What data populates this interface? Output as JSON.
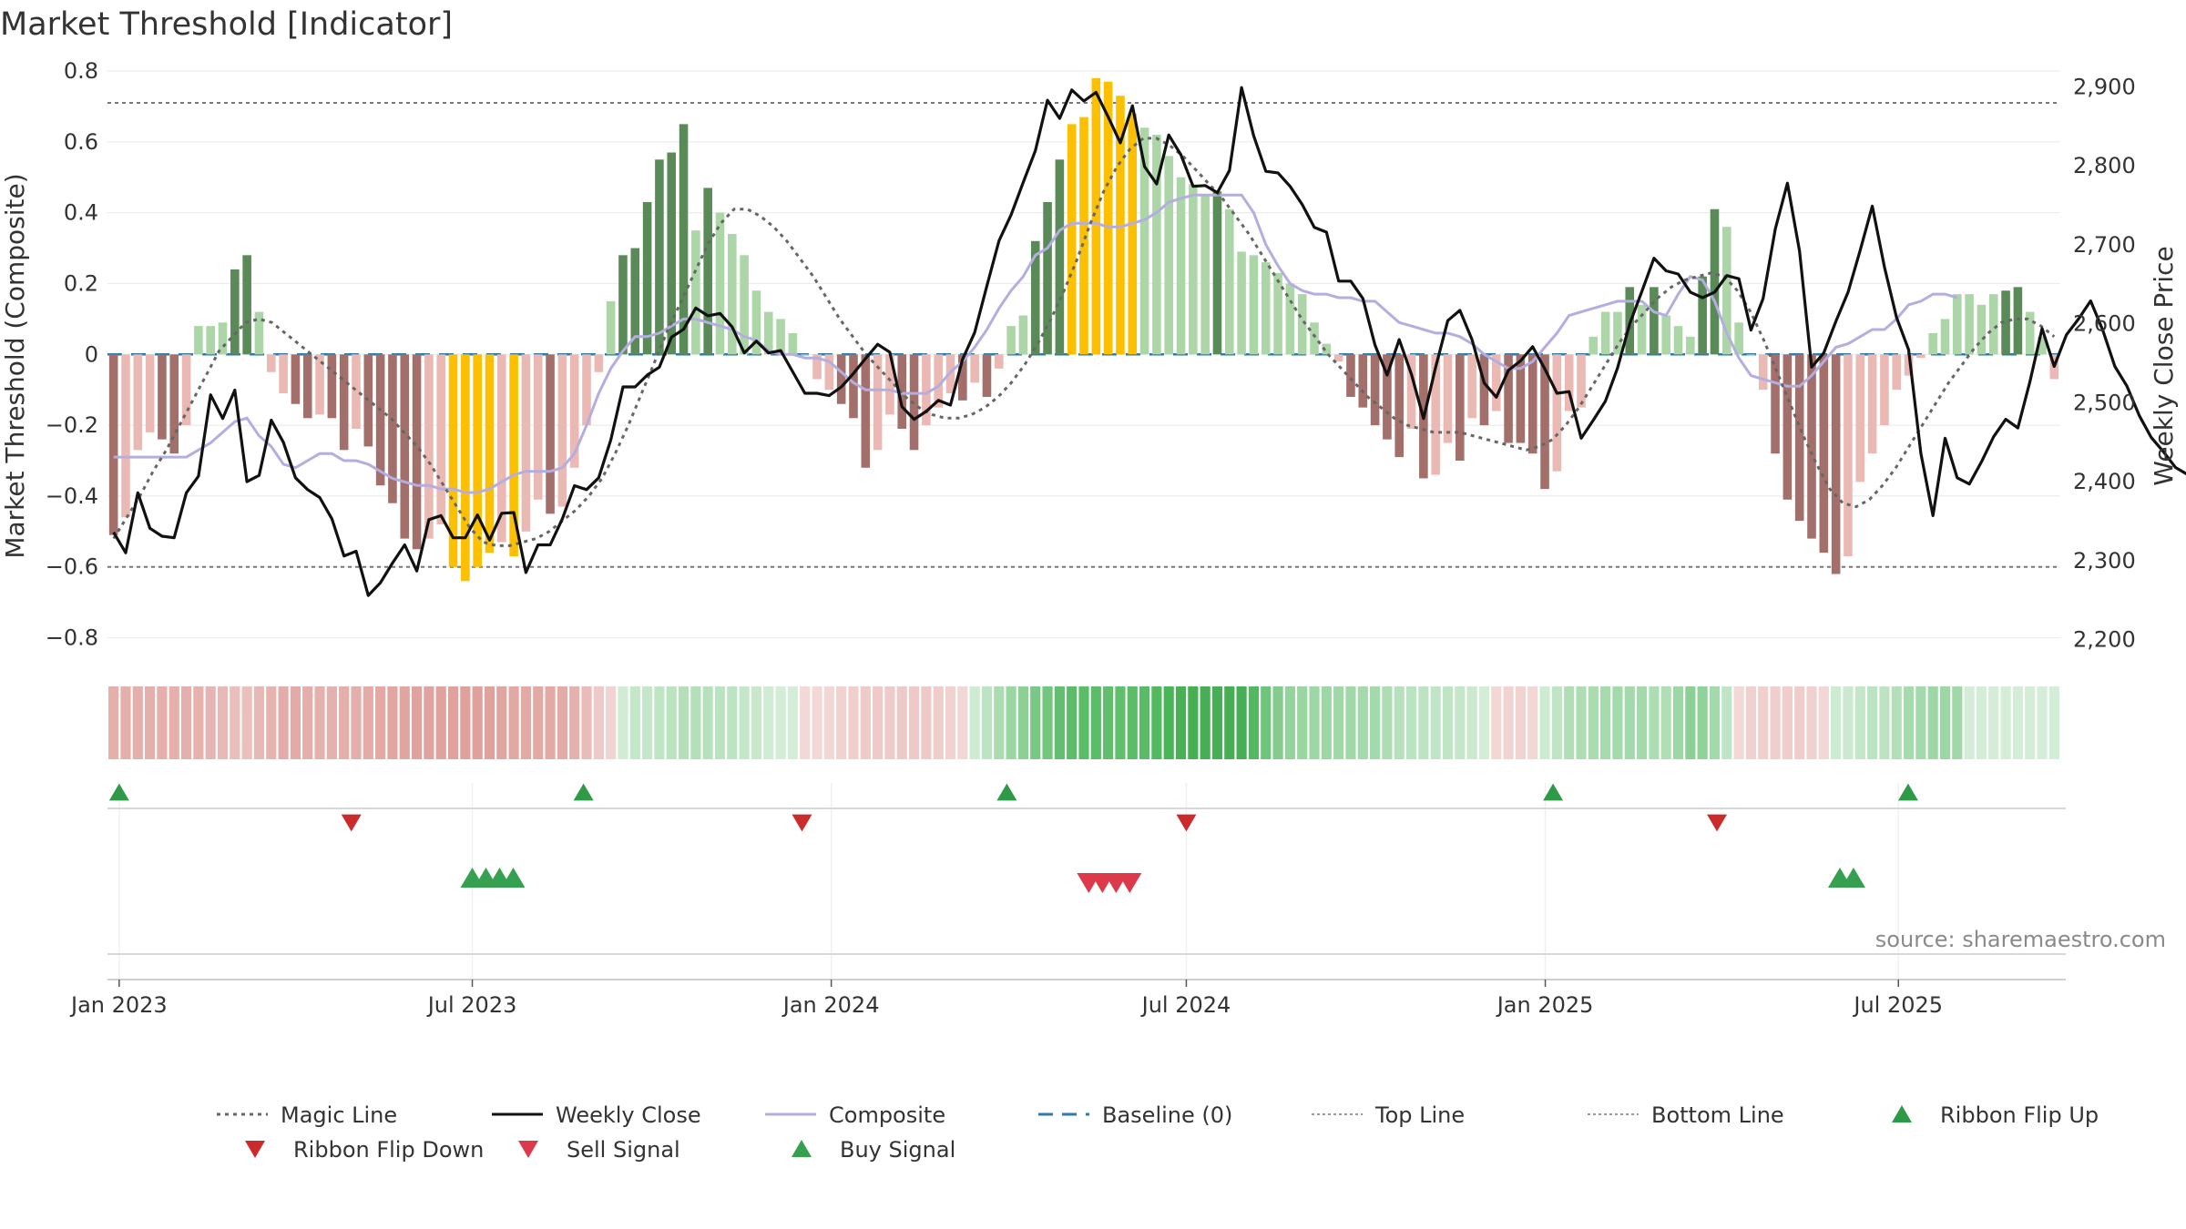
{
  "title": "Market Threshold [Indicator]",
  "source": "source: sharemaestro.com",
  "chart_data": {
    "type": "bar",
    "ylabel_left": "Market Threshold (Composite)",
    "ylabel_right": "Weekly Close Price",
    "ylim_left": [
      -0.85,
      0.8
    ],
    "ylim_right": [
      2180,
      2920
    ],
    "yticks_left": [
      {
        "v": 0.8,
        "t": "0.8"
      },
      {
        "v": 0.6,
        "t": "0.6"
      },
      {
        "v": 0.4,
        "t": "0.4"
      },
      {
        "v": 0.2,
        "t": "0.2"
      },
      {
        "v": 0,
        "t": "0"
      },
      {
        "v": -0.2,
        "t": "−0.2"
      },
      {
        "v": -0.4,
        "t": "−0.4"
      },
      {
        "v": -0.6,
        "t": "−0.6"
      },
      {
        "v": -0.8,
        "t": "−0.8"
      }
    ],
    "yticks_right": [
      {
        "v": 2900,
        "t": "2,900"
      },
      {
        "v": 2800,
        "t": "2,800"
      },
      {
        "v": 2700,
        "t": "2,700"
      },
      {
        "v": 2600,
        "t": "2,600"
      },
      {
        "v": 2500,
        "t": "2,500"
      },
      {
        "v": 2400,
        "t": "2,400"
      },
      {
        "v": 2300,
        "t": "2,300"
      },
      {
        "v": 2200,
        "t": "2,200"
      }
    ],
    "x_start": "2022-12-26",
    "x_end": "2025-09-22",
    "xticks": [
      {
        "d": "2023-01-01",
        "t": "Jan 2023"
      },
      {
        "d": "2023-07-01",
        "t": "Jul 2023"
      },
      {
        "d": "2024-01-01",
        "t": "Jan 2024"
      },
      {
        "d": "2024-07-01",
        "t": "Jul 2024"
      },
      {
        "d": "2025-01-01",
        "t": "Jan 2025"
      },
      {
        "d": "2025-07-01",
        "t": "Jul 2025"
      }
    ],
    "top_line": 0.71,
    "bottom_line": -0.6,
    "baseline": 0,
    "composite_bars": [
      -0.51,
      -0.46,
      -0.27,
      -0.22,
      -0.24,
      -0.28,
      -0.2,
      0.08,
      0.08,
      0.09,
      0.24,
      0.28,
      0.12,
      -0.05,
      -0.11,
      -0.14,
      -0.18,
      -0.17,
      -0.18,
      -0.27,
      -0.21,
      -0.26,
      -0.37,
      -0.42,
      -0.52,
      -0.55,
      -0.52,
      -0.48,
      -0.6,
      -0.64,
      -0.6,
      -0.56,
      -0.53,
      -0.57,
      -0.5,
      -0.41,
      -0.45,
      -0.43,
      -0.32,
      -0.2,
      -0.05,
      0.15,
      0.28,
      0.3,
      0.43,
      0.55,
      0.57,
      0.65,
      0.35,
      0.47,
      0.4,
      0.34,
      0.28,
      0.18,
      0.12,
      0.1,
      0.06,
      0.0,
      -0.07,
      -0.1,
      -0.14,
      -0.18,
      -0.32,
      -0.27,
      -0.17,
      -0.21,
      -0.27,
      -0.2,
      -0.15,
      -0.11,
      -0.13,
      -0.08,
      -0.12,
      -0.04,
      0.08,
      0.11,
      0.32,
      0.43,
      0.55,
      0.65,
      0.67,
      0.78,
      0.77,
      0.73,
      0.68,
      0.64,
      0.62,
      0.56,
      0.5,
      0.48,
      0.45,
      0.46,
      0.41,
      0.29,
      0.28,
      0.26,
      0.23,
      0.2,
      0.17,
      0.09,
      0.03,
      -0.02,
      -0.12,
      -0.15,
      -0.2,
      -0.24,
      -0.29,
      -0.21,
      -0.35,
      -0.34,
      -0.25,
      -0.3,
      -0.18,
      -0.2,
      -0.16,
      -0.25,
      -0.25,
      -0.28,
      -0.38,
      -0.33,
      -0.16,
      -0.15,
      0.05,
      0.12,
      0.12,
      0.19,
      0.14,
      0.19,
      0.11,
      0.08,
      0.05,
      0.22,
      0.41,
      0.36,
      0.09,
      0.0,
      -0.1,
      -0.28,
      -0.41,
      -0.47,
      -0.52,
      -0.56,
      -0.62,
      -0.57,
      -0.36,
      -0.28,
      -0.2,
      -0.1,
      -0.06,
      -0.01,
      0.06,
      0.1,
      0.17,
      0.17,
      0.14,
      0.17,
      0.18,
      0.19,
      0.12,
      0.05,
      -0.07
    ],
    "weekly_close": [
      2336,
      2310,
      2386,
      2341,
      2331,
      2329,
      2386,
      2407,
      2510,
      2480,
      2516,
      2400,
      2408,
      2478,
      2450,
      2405,
      2390,
      2380,
      2353,
      2306,
      2312,
      2256,
      2272,
      2297,
      2320,
      2287,
      2352,
      2357,
      2329,
      2329,
      2358,
      2326,
      2360,
      2361,
      2285,
      2320,
      2320,
      2353,
      2395,
      2390,
      2405,
      2453,
      2520,
      2520,
      2535,
      2545,
      2583,
      2593,
      2620,
      2610,
      2613,
      2596,
      2563,
      2578,
      2563,
      2566,
      2539,
      2512,
      2512,
      2509,
      2520,
      2537,
      2556,
      2574,
      2564,
      2495,
      2479,
      2489,
      2503,
      2497,
      2555,
      2589,
      2648,
      2705,
      2738,
      2779,
      2819,
      2883,
      2860,
      2896,
      2882,
      2893,
      2862,
      2829,
      2876,
      2799,
      2777,
      2839,
      2814,
      2774,
      2775,
      2766,
      2794,
      2899,
      2838,
      2793,
      2791,
      2774,
      2751,
      2722,
      2716,
      2654,
      2654,
      2632,
      2573,
      2535,
      2580,
      2536,
      2480,
      2545,
      2604,
      2617,
      2580,
      2525,
      2507,
      2541,
      2553,
      2571,
      2543,
      2512,
      2514,
      2455,
      2478,
      2502,
      2544,
      2600,
      2641,
      2683,
      2667,
      2663,
      2640,
      2633,
      2640,
      2661,
      2657,
      2592,
      2632,
      2720,
      2778,
      2692,
      2545,
      2563,
      2603,
      2640,
      2693,
      2749,
      2672,
      2608,
      2567,
      2436,
      2357,
      2455,
      2405,
      2397,
      2425,
      2457,
      2479,
      2468,
      2527,
      2594,
      2546,
      2586,
      2606,
      2629,
      2592,
      2546,
      2521,
      2484,
      2456,
      2438,
      2418,
      2409,
      2389,
      2360,
      2358,
      2411
    ],
    "magic_line": [
      -0.52,
      -0.46,
      -0.4,
      -0.33,
      -0.27,
      -0.2,
      -0.13,
      -0.06,
      0.01,
      0.05,
      0.09,
      0.1,
      0.09,
      0.06,
      0.03,
      0.0,
      -0.03,
      -0.06,
      -0.09,
      -0.12,
      -0.15,
      -0.18,
      -0.22,
      -0.26,
      -0.31,
      -0.37,
      -0.43,
      -0.49,
      -0.53,
      -0.54,
      -0.54,
      -0.53,
      -0.52,
      -0.5,
      -0.47,
      -0.44,
      -0.4,
      -0.35,
      -0.28,
      -0.2,
      -0.11,
      -0.02,
      0.07,
      0.15,
      0.23,
      0.31,
      0.37,
      0.41,
      0.41,
      0.39,
      0.36,
      0.32,
      0.27,
      0.22,
      0.16,
      0.1,
      0.05,
      0.0,
      -0.04,
      -0.08,
      -0.12,
      -0.15,
      -0.17,
      -0.18,
      -0.18,
      -0.17,
      -0.15,
      -0.12,
      -0.08,
      -0.03,
      0.03,
      0.1,
      0.18,
      0.27,
      0.37,
      0.46,
      0.53,
      0.58,
      0.61,
      0.61,
      0.59,
      0.56,
      0.52,
      0.48,
      0.44,
      0.39,
      0.34,
      0.28,
      0.22,
      0.16,
      0.1,
      0.05,
      0.0,
      -0.04,
      -0.08,
      -0.12,
      -0.15,
      -0.18,
      -0.2,
      -0.21,
      -0.22,
      -0.22,
      -0.22,
      -0.23,
      -0.24,
      -0.25,
      -0.26,
      -0.27,
      -0.26,
      -0.24,
      -0.2,
      -0.15,
      -0.09,
      -0.03,
      0.03,
      0.08,
      0.12,
      0.16,
      0.19,
      0.21,
      0.22,
      0.23,
      0.22,
      0.18,
      0.12,
      0.04,
      -0.05,
      -0.14,
      -0.23,
      -0.31,
      -0.38,
      -0.42,
      -0.43,
      -0.41,
      -0.37,
      -0.32,
      -0.26,
      -0.2,
      -0.14,
      -0.08,
      -0.03,
      0.02,
      0.06,
      0.09,
      0.1,
      0.1,
      0.08,
      0.05
    ],
    "composite_line": [
      -0.29,
      -0.29,
      -0.29,
      -0.29,
      -0.29,
      -0.29,
      -0.29,
      -0.27,
      -0.25,
      -0.22,
      -0.19,
      -0.18,
      -0.23,
      -0.26,
      -0.31,
      -0.32,
      -0.3,
      -0.28,
      -0.28,
      -0.3,
      -0.3,
      -0.31,
      -0.33,
      -0.35,
      -0.36,
      -0.37,
      -0.37,
      -0.38,
      -0.38,
      -0.39,
      -0.39,
      -0.38,
      -0.36,
      -0.34,
      -0.33,
      -0.33,
      -0.33,
      -0.32,
      -0.28,
      -0.2,
      -0.11,
      -0.04,
      0.01,
      0.05,
      0.05,
      0.06,
      0.08,
      0.1,
      0.1,
      0.09,
      0.08,
      0.07,
      0.05,
      0.04,
      0.01,
      0.0,
      0.0,
      -0.01,
      -0.01,
      -0.02,
      -0.05,
      -0.08,
      -0.1,
      -0.1,
      -0.1,
      -0.11,
      -0.11,
      -0.11,
      -0.09,
      -0.05,
      -0.02,
      0.02,
      0.07,
      0.13,
      0.18,
      0.22,
      0.28,
      0.3,
      0.35,
      0.37,
      0.37,
      0.37,
      0.36,
      0.36,
      0.37,
      0.38,
      0.4,
      0.43,
      0.44,
      0.45,
      0.45,
      0.45,
      0.45,
      0.45,
      0.4,
      0.31,
      0.25,
      0.2,
      0.18,
      0.17,
      0.17,
      0.16,
      0.16,
      0.15,
      0.15,
      0.12,
      0.09,
      0.08,
      0.07,
      0.06,
      0.06,
      0.05,
      0.03,
      0.0,
      -0.02,
      -0.04,
      -0.04,
      -0.02,
      0.02,
      0.06,
      0.11,
      0.12,
      0.13,
      0.14,
      0.15,
      0.15,
      0.15,
      0.12,
      0.11,
      0.17,
      0.22,
      0.21,
      0.15,
      0.06,
      -0.01,
      -0.06,
      -0.07,
      -0.08,
      -0.09,
      -0.09,
      -0.06,
      -0.02,
      0.02,
      0.03,
      0.05,
      0.07,
      0.07,
      0.1,
      0.14,
      0.15,
      0.17,
      0.17,
      0.16
    ],
    "ribbon_flip_up": [
      "2023-01-01",
      "2023-08-27",
      "2024-03-31",
      "2025-01-05",
      "2025-07-06"
    ],
    "ribbon_flip_down": [
      "2023-04-30",
      "2023-12-17",
      "2024-07-01",
      "2025-03-30"
    ],
    "buy_signal": [
      "2023-07-01",
      "2023-07-08",
      "2023-07-15",
      "2023-07-22",
      "2025-06-01",
      "2025-06-08"
    ],
    "sell_signal": [
      "2024-05-12",
      "2024-05-19",
      "2024-05-26",
      "2024-06-02"
    ],
    "legend": [
      {
        "label": "Magic Line",
        "kind": "dotted",
        "color": "#666666"
      },
      {
        "label": "Weekly Close",
        "kind": "solid",
        "color": "#111111"
      },
      {
        "label": "Composite",
        "kind": "solid",
        "color": "#b4aee0"
      },
      {
        "label": "Baseline (0)",
        "kind": "dashed",
        "color": "#2f7aa8"
      },
      {
        "label": "Top Line",
        "kind": "finedot",
        "color": "#9a9a9a"
      },
      {
        "label": "Bottom Line",
        "kind": "finedot",
        "color": "#9a9a9a"
      },
      {
        "label": "Ribbon Flip Up",
        "kind": "tri-up",
        "color": "#2e9a47"
      },
      {
        "label": "Ribbon Flip Down",
        "kind": "tri-down",
        "color": "#cc2b2b"
      },
      {
        "label": "Sell Signal",
        "kind": "tri-down",
        "color": "#dc3a4b"
      },
      {
        "label": "Buy Signal",
        "kind": "tri-up",
        "color": "#35a04f"
      }
    ],
    "colors": {
      "strong_pos": "#5a8a57",
      "weak_pos": "#acd6a8",
      "strong_neg": "#a26f6b",
      "weak_neg": "#eab9b3",
      "extreme": "#fcc000"
    }
  }
}
